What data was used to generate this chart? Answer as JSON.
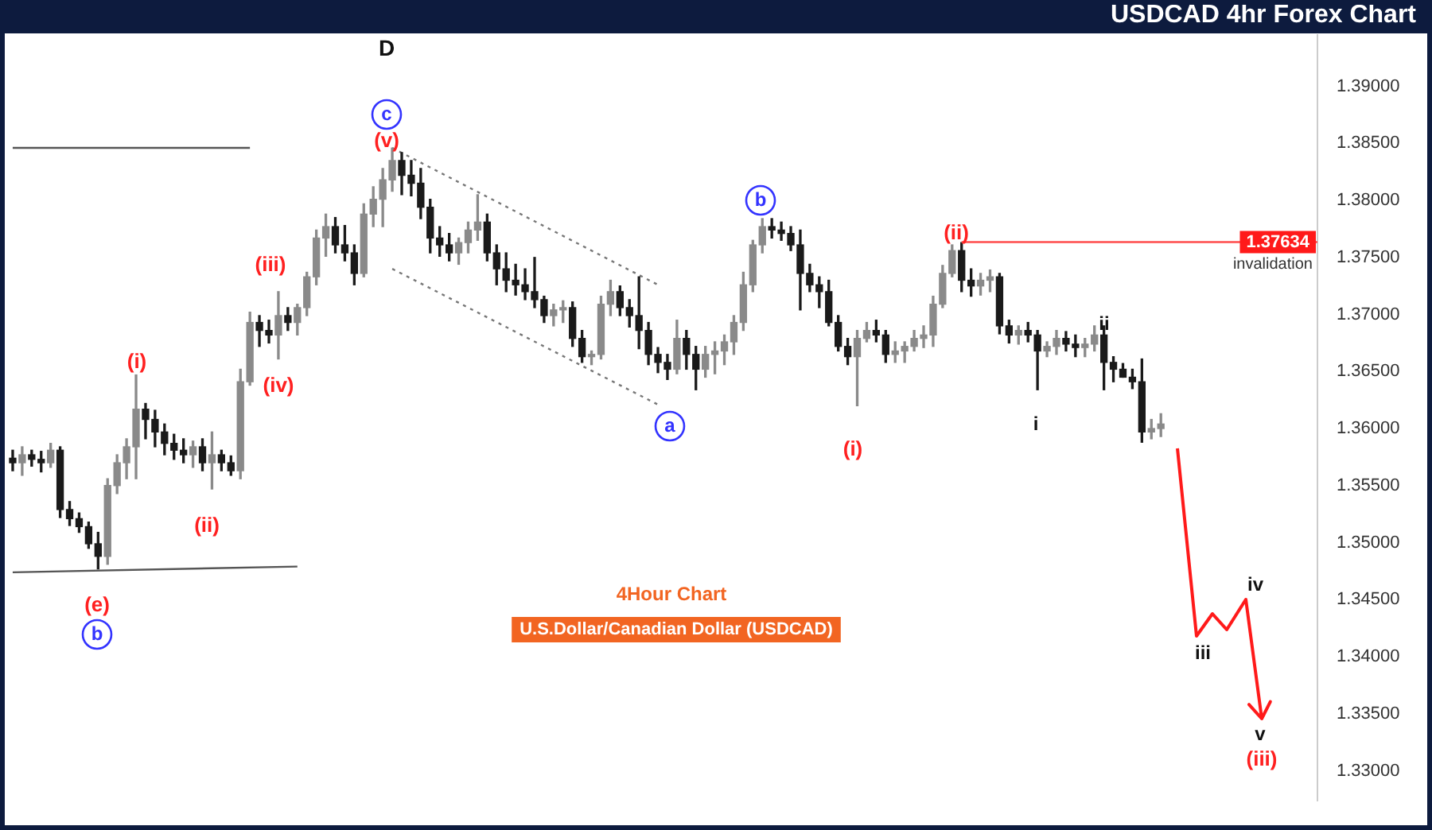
{
  "chart_data": {
    "type": "candlestick",
    "title": "USDCAD 4hr Forex Chart",
    "colors": [
      "#1a1a1a",
      "#8a8a8a",
      "#1a1a1a",
      "#1a1a1a",
      "#8a8a8a",
      "#1a1a1a",
      "#1a1a1a",
      "#1a1a1a",
      "#1a1a1a",
      "#1a1a1a",
      "#8a8a8a",
      "#8a8a8a",
      "#8a8a8a",
      "#8a8a8a",
      "#1a1a1a",
      "#1a1a1a",
      "#1a1a1a",
      "#1a1a1a",
      "#1a1a1a",
      "#8a8a8a",
      "#1a1a1a",
      "#8a8a8a",
      "#1a1a1a",
      "#1a1a1a",
      "#8a8a8a",
      "#8a8a8a",
      "#1a1a1a",
      "#1a1a1a",
      "#8a8a8a",
      "#1a1a1a",
      "#8a8a8a",
      "#8a8a8a",
      "#8a8a8a",
      "#8a8a8a",
      "#1a1a1a",
      "#1a1a1a",
      "#1a1a1a",
      "#8a8a8a",
      "#8a8a8a",
      "#8a8a8a",
      "#8a8a8a",
      "#1a1a1a",
      "#1a1a1a",
      "#1a1a1a",
      "#1a1a1a",
      "#1a1a1a",
      "#1a1a1a",
      "#8a8a8a",
      "#8a8a8a",
      "#8a8a8a",
      "#1a1a1a",
      "#1a1a1a",
      "#1a1a1a",
      "#1a1a1a",
      "#1a1a1a",
      "#1a1a1a",
      "#1a1a1a",
      "#8a8a8a",
      "#8a8a8a",
      "#1a1a1a",
      "#1a1a1a",
      "#8a8a8a",
      "#8a8a8a",
      "#8a8a8a",
      "#1a1a1a",
      "#1a1a1a",
      "#1a1a1a",
      "#1a1a1a",
      "#1a1a1a",
      "#1a1a1a",
      "#8a8a8a",
      "#1a1a1a",
      "#1a1a1a",
      "#8a8a8a",
      "#8a8a8a",
      "#8a8a8a",
      "#8a8a8a",
      "#8a8a8a",
      "#8a8a8a",
      "#8a8a8a",
      "#1a1a1a",
      "#1a1a1a",
      "#1a1a1a",
      "#1a1a1a",
      "#1a1a1a",
      "#1a1a1a",
      "#1a1a1a",
      "#1a1a1a",
      "#1a1a1a",
      "#8a8a8a",
      "#8a8a8a",
      "#1a1a1a",
      "#1a1a1a",
      "#8a8a8a",
      "#8a8a8a",
      "#8a8a8a",
      "#8a8a8a",
      "#8a8a8a",
      "#8a8a8a",
      "#8a8a8a",
      "#1a1a1a",
      "#1a1a1a",
      "#8a8a8a",
      "#8a8a8a",
      "#1a1a1a",
      "#1a1a1a",
      "#8a8a8a",
      "#1a1a1a",
      "#1a1a1a",
      "#8a8a8a",
      "#8a8a8a",
      "#1a1a1a",
      "#1a1a1a",
      "#8a8a8a",
      "#8a8a8a",
      "#1a1a1a",
      "#1a1a1a",
      "#1a1a1a",
      "#1a1a1a",
      "#1a1a1a",
      "#8a8a8a",
      "#8a8a8a",
      null,
      null,
      null,
      null,
      null,
      null,
      null,
      null,
      null,
      null,
      null,
      null,
      null,
      null,
      null,
      null
    ],
    "categories": [
      null,
      null,
      null,
      null,
      null,
      null,
      null,
      null,
      null,
      null,
      null,
      null,
      null,
      null,
      null,
      null,
      null,
      null,
      null,
      null,
      null,
      null,
      null,
      null,
      null,
      null,
      null,
      null,
      null,
      null,
      null,
      null,
      null,
      null,
      null,
      null,
      null,
      null,
      null,
      null,
      null,
      null,
      null,
      null,
      null,
      null,
      null,
      null,
      null,
      null,
      null,
      null,
      null,
      null,
      null,
      null,
      null,
      null,
      null,
      null,
      null,
      null,
      null,
      null,
      null,
      null,
      null,
      null,
      null,
      null,
      null,
      null,
      null,
      null,
      null,
      null,
      null,
      null,
      null,
      null,
      null,
      null,
      null,
      null,
      null,
      null,
      null,
      null,
      null,
      null,
      null,
      null,
      null,
      null,
      null,
      null,
      null,
      null,
      null,
      null,
      null,
      null,
      null,
      null,
      null,
      null,
      null,
      null,
      null,
      null,
      null,
      null,
      null,
      null,
      null,
      null,
      null,
      null,
      null,
      null,
      null,
      null,
      null,
      null,
      null,
      null,
      null,
      null,
      null,
      null,
      null,
      null,
      null,
      null,
      null,
      null,
      null,
      null
    ],
    "ohlc": [
      [
        1.3574,
        1.3581,
        1.3563,
        1.357
      ],
      [
        1.357,
        1.3584,
        1.3559,
        1.3577
      ],
      [
        1.3577,
        1.3581,
        1.3567,
        1.3573
      ],
      [
        1.3573,
        1.358,
        1.3562,
        1.357
      ],
      [
        1.357,
        1.3587,
        1.3566,
        1.3581
      ],
      [
        1.3581,
        1.3584,
        1.3522,
        1.3529
      ],
      [
        1.3529,
        1.3536,
        1.3515,
        1.3521
      ],
      [
        1.3521,
        1.3526,
        1.3509,
        1.3514
      ],
      [
        1.3514,
        1.3518,
        1.3495,
        1.3499
      ],
      [
        1.3499,
        1.3509,
        1.3477,
        1.3488
      ],
      [
        1.3488,
        1.3556,
        1.3481,
        1.355
      ],
      [
        1.355,
        1.3577,
        1.3543,
        1.357
      ],
      [
        1.357,
        1.3591,
        1.3556,
        1.3584
      ],
      [
        1.3584,
        1.3647,
        1.3556,
        1.3617
      ],
      [
        1.3617,
        1.3622,
        1.3591,
        1.3608
      ],
      [
        1.3608,
        1.3616,
        1.3584,
        1.3597
      ],
      [
        1.3597,
        1.3604,
        1.3577,
        1.3587
      ],
      [
        1.3587,
        1.3595,
        1.3573,
        1.3581
      ],
      [
        1.3581,
        1.3591,
        1.357,
        1.3577
      ],
      [
        1.3577,
        1.3589,
        1.3566,
        1.3584
      ],
      [
        1.3584,
        1.3591,
        1.3563,
        1.357
      ],
      [
        1.357,
        1.3597,
        1.3547,
        1.3577
      ],
      [
        1.3577,
        1.3581,
        1.3563,
        1.357
      ],
      [
        1.357,
        1.3576,
        1.3559,
        1.3563
      ],
      [
        1.3563,
        1.3652,
        1.3556,
        1.3641
      ],
      [
        1.3641,
        1.3702,
        1.3638,
        1.3693
      ],
      [
        1.3693,
        1.3699,
        1.3672,
        1.3686
      ],
      [
        1.3686,
        1.3695,
        1.3675,
        1.3682
      ],
      [
        1.3682,
        1.372,
        1.3661,
        1.3699
      ],
      [
        1.3699,
        1.3706,
        1.3686,
        1.3693
      ],
      [
        1.3693,
        1.3709,
        1.3682,
        1.3706
      ],
      [
        1.3706,
        1.3737,
        1.3699,
        1.3733
      ],
      [
        1.3733,
        1.3774,
        1.3726,
        1.3767
      ],
      [
        1.3767,
        1.3788,
        1.3751,
        1.3777
      ],
      [
        1.3777,
        1.3785,
        1.3754,
        1.3761
      ],
      [
        1.3761,
        1.3778,
        1.3747,
        1.3754
      ],
      [
        1.3754,
        1.3761,
        1.3726,
        1.3736
      ],
      [
        1.3736,
        1.3797,
        1.3733,
        1.3788
      ],
      [
        1.3788,
        1.3812,
        1.3777,
        1.3801
      ],
      [
        1.3801,
        1.3828,
        1.3777,
        1.3818
      ],
      [
        1.3818,
        1.3846,
        1.3808,
        1.3835
      ],
      [
        1.3835,
        1.3842,
        1.3805,
        1.3822
      ],
      [
        1.3822,
        1.3835,
        1.3804,
        1.3815
      ],
      [
        1.3815,
        1.3828,
        1.3784,
        1.3794
      ],
      [
        1.3794,
        1.3801,
        1.3754,
        1.3767
      ],
      [
        1.3767,
        1.3777,
        1.3751,
        1.3761
      ],
      [
        1.3761,
        1.3771,
        1.3747,
        1.3754
      ],
      [
        1.3754,
        1.3767,
        1.3744,
        1.3763
      ],
      [
        1.3763,
        1.3781,
        1.3754,
        1.3774
      ],
      [
        1.3774,
        1.3805,
        1.3765,
        1.3781
      ],
      [
        1.3781,
        1.3788,
        1.3747,
        1.3754
      ],
      [
        1.3754,
        1.3761,
        1.3726,
        1.374
      ],
      [
        1.374,
        1.3754,
        1.372,
        1.373
      ],
      [
        1.373,
        1.3744,
        1.3717,
        1.3726
      ],
      [
        1.3726,
        1.374,
        1.3713,
        1.372
      ],
      [
        1.372,
        1.375,
        1.3706,
        1.3713
      ],
      [
        1.3713,
        1.3716,
        1.3693,
        1.3699
      ],
      [
        1.3699,
        1.3709,
        1.369,
        1.3704
      ],
      [
        1.3704,
        1.3712,
        1.3693,
        1.3706
      ],
      [
        1.3706,
        1.3711,
        1.3672,
        1.3679
      ],
      [
        1.3679,
        1.3686,
        1.3658,
        1.3663
      ],
      [
        1.3663,
        1.3668,
        1.3656,
        1.3665
      ],
      [
        1.3665,
        1.3716,
        1.3661,
        1.3709
      ],
      [
        1.3709,
        1.373,
        1.3699,
        1.372
      ],
      [
        1.372,
        1.3725,
        1.3699,
        1.3706
      ],
      [
        1.3706,
        1.3713,
        1.3689,
        1.3699
      ],
      [
        1.3699,
        1.3733,
        1.367,
        1.3686
      ],
      [
        1.3686,
        1.3693,
        1.3656,
        1.3665
      ],
      [
        1.3665,
        1.3671,
        1.3649,
        1.3658
      ],
      [
        1.3658,
        1.3665,
        1.3643,
        1.3652
      ],
      [
        1.3652,
        1.3695,
        1.3648,
        1.3679
      ],
      [
        1.3679,
        1.3686,
        1.3652,
        1.3665
      ],
      [
        1.3665,
        1.3672,
        1.3634,
        1.3652
      ],
      [
        1.3652,
        1.3672,
        1.3645,
        1.3665
      ],
      [
        1.3665,
        1.3676,
        1.3648,
        1.3668
      ],
      [
        1.3668,
        1.3682,
        1.3656,
        1.3676
      ],
      [
        1.3676,
        1.3699,
        1.3665,
        1.3693
      ],
      [
        1.3693,
        1.3737,
        1.3686,
        1.3726
      ],
      [
        1.3726,
        1.3765,
        1.372,
        1.3761
      ],
      [
        1.3761,
        1.3784,
        1.3754,
        1.3777
      ],
      [
        1.3777,
        1.3784,
        1.3767,
        1.3774
      ],
      [
        1.3774,
        1.3781,
        1.3765,
        1.3771
      ],
      [
        1.3771,
        1.3777,
        1.3756,
        1.3761
      ],
      [
        1.3761,
        1.3774,
        1.3704,
        1.3736
      ],
      [
        1.3736,
        1.3744,
        1.372,
        1.3726
      ],
      [
        1.3726,
        1.3733,
        1.3706,
        1.372
      ],
      [
        1.372,
        1.373,
        1.369,
        1.3693
      ],
      [
        1.3693,
        1.3699,
        1.3668,
        1.3672
      ],
      [
        1.3672,
        1.3679,
        1.3656,
        1.3663
      ],
      [
        1.3663,
        1.3686,
        1.362,
        1.3679
      ],
      [
        1.3679,
        1.3693,
        1.3676,
        1.3686
      ],
      [
        1.3686,
        1.3695,
        1.3676,
        1.3682
      ],
      [
        1.3682,
        1.3686,
        1.3658,
        1.3665
      ],
      [
        1.3665,
        1.3676,
        1.3658,
        1.3668
      ],
      [
        1.3668,
        1.3676,
        1.3658,
        1.3672
      ],
      [
        1.3672,
        1.3686,
        1.3668,
        1.3679
      ],
      [
        1.3679,
        1.369,
        1.3671,
        1.3682
      ],
      [
        1.3682,
        1.3716,
        1.3672,
        1.3709
      ],
      [
        1.3709,
        1.3743,
        1.3706,
        1.3736
      ],
      [
        1.3736,
        1.3761,
        1.3733,
        1.3756
      ],
      [
        1.3756,
        1.3763,
        1.372,
        1.373
      ],
      [
        1.373,
        1.374,
        1.3716,
        1.3725
      ],
      [
        1.3725,
        1.3736,
        1.3717,
        1.373
      ],
      [
        1.373,
        1.3739,
        1.372,
        1.3733
      ],
      [
        1.3733,
        1.3736,
        1.3683,
        1.369
      ],
      [
        1.369,
        1.3695,
        1.3675,
        1.3682
      ],
      [
        1.3682,
        1.369,
        1.3674,
        1.3686
      ],
      [
        1.3686,
        1.3693,
        1.3676,
        1.3682
      ],
      [
        1.3682,
        1.3686,
        1.3634,
        1.3668
      ],
      [
        1.3668,
        1.3676,
        1.3663,
        1.3672
      ],
      [
        1.3672,
        1.3686,
        1.3665,
        1.3679
      ],
      [
        1.3679,
        1.3685,
        1.3668,
        1.3674
      ],
      [
        1.3674,
        1.3682,
        1.3663,
        1.3671
      ],
      [
        1.3671,
        1.3679,
        1.3663,
        1.3674
      ],
      [
        1.3674,
        1.369,
        1.3668,
        1.3682
      ],
      [
        1.3682,
        1.369,
        1.3634,
        1.3658
      ],
      [
        1.3658,
        1.3663,
        1.3641,
        1.3652
      ],
      [
        1.3652,
        1.3657,
        1.3645,
        1.3645
      ],
      [
        1.3645,
        1.3652,
        1.3635,
        1.3641
      ],
      [
        1.3641,
        1.3661,
        1.3588,
        1.3597
      ],
      [
        1.3597,
        1.3608,
        1.3591,
        1.36
      ],
      [
        1.36,
        1.3613,
        1.3593,
        1.3604
      ],
      null,
      null,
      null,
      null,
      null,
      null,
      null,
      null,
      null,
      null,
      null,
      null,
      null,
      null,
      null,
      null
    ],
    "series": [
      {
        "type": "line",
        "color": "#777777",
        "line_style": "dotted",
        "values": [
          null,
          null,
          null,
          null,
          null,
          null,
          null,
          null,
          null,
          null,
          null,
          null,
          null,
          null,
          null,
          null,
          null,
          null,
          null,
          null,
          null,
          null,
          null,
          null,
          null,
          null,
          null,
          null,
          null,
          null,
          null,
          null,
          null,
          null,
          null,
          null,
          null,
          null,
          null,
          null,
          1.3846,
          null,
          null,
          null,
          null,
          null,
          null,
          null,
          null,
          null,
          null,
          null,
          null,
          null,
          null,
          null,
          null,
          null,
          null,
          null,
          null,
          null,
          null,
          null,
          null,
          null,
          null,
          null,
          1.3726,
          null,
          null,
          null,
          null,
          null,
          null,
          null,
          null,
          null,
          null,
          null,
          null,
          null,
          null,
          null,
          null,
          null,
          null,
          null,
          null,
          null,
          null,
          null,
          null,
          null,
          null,
          null,
          null,
          null,
          null,
          null,
          null,
          null,
          null,
          null,
          null,
          null,
          null,
          null,
          null,
          null,
          null,
          null,
          null,
          null,
          null,
          null,
          null,
          null,
          null,
          null,
          null,
          null,
          null,
          null,
          null,
          null,
          null,
          null,
          null,
          null,
          null,
          null,
          null,
          null,
          null,
          null,
          null,
          null
        ]
      },
      {
        "type": "line",
        "color": "#777777",
        "line_style": "dotted",
        "values": [
          null,
          null,
          null,
          null,
          null,
          null,
          null,
          null,
          null,
          null,
          null,
          null,
          null,
          null,
          null,
          null,
          null,
          null,
          null,
          null,
          null,
          null,
          null,
          null,
          null,
          null,
          null,
          null,
          null,
          null,
          null,
          null,
          null,
          null,
          null,
          null,
          null,
          null,
          null,
          null,
          1.374,
          null,
          null,
          null,
          null,
          null,
          null,
          null,
          null,
          null,
          null,
          null,
          null,
          null,
          null,
          null,
          null,
          null,
          null,
          null,
          null,
          null,
          null,
          null,
          null,
          null,
          null,
          null,
          1.3621,
          null,
          null,
          null,
          null,
          null,
          null,
          null,
          null,
          null,
          null,
          null,
          null,
          null,
          null,
          null,
          null,
          null,
          null,
          null,
          null,
          null,
          null,
          null,
          null,
          null,
          null,
          null,
          null,
          null,
          null,
          null,
          null,
          null,
          null,
          null,
          null,
          null,
          null,
          null,
          null,
          null,
          null,
          null,
          null,
          null,
          null,
          null,
          null,
          null,
          null,
          null,
          null,
          null,
          null,
          null,
          null,
          null,
          null,
          null,
          null,
          null,
          null,
          null,
          null,
          null,
          null,
          null,
          null,
          null
        ]
      },
      {
        "type": "line",
        "color": "#555555",
        "line_style": "solid",
        "values": [
          1.3846,
          null,
          null,
          null,
          null,
          null,
          null,
          null,
          null,
          null,
          null,
          null,
          null,
          null,
          null,
          null,
          null,
          null,
          null,
          null,
          null,
          null,
          null,
          null,
          null,
          1.3846,
          null,
          null,
          null,
          null,
          null,
          null,
          null,
          null,
          null,
          null,
          null,
          null,
          null,
          null,
          null,
          null,
          null,
          null,
          null,
          null,
          null,
          null,
          null,
          null,
          null,
          null,
          null,
          null,
          null,
          null,
          null,
          null,
          null,
          null,
          null,
          null,
          null,
          null,
          null,
          null,
          null,
          null,
          null,
          null,
          null,
          null,
          null,
          null,
          null,
          null,
          null,
          null,
          null,
          null,
          null,
          null,
          null,
          null,
          null,
          null,
          null,
          null,
          null,
          null,
          null,
          null,
          null,
          null,
          null,
          null,
          null,
          null,
          null,
          null,
          null,
          null,
          null,
          null,
          null,
          null,
          null,
          null,
          null,
          null,
          null,
          null,
          null,
          null,
          null,
          null,
          null,
          null,
          null,
          null,
          null,
          null,
          null,
          null,
          null,
          null,
          null,
          null,
          null,
          null,
          null,
          null,
          null,
          null,
          null,
          null,
          null,
          null
        ]
      },
      {
        "type": "line",
        "color": "#555555",
        "line_style": "solid",
        "values": [
          1.3474,
          null,
          null,
          null,
          null,
          null,
          null,
          null,
          null,
          null,
          null,
          null,
          null,
          null,
          null,
          null,
          null,
          null,
          null,
          null,
          null,
          null,
          null,
          null,
          null,
          null,
          null,
          null,
          null,
          null,
          1.3479,
          null,
          null,
          null,
          null,
          null,
          null,
          null,
          null,
          null,
          null,
          null,
          null,
          null,
          null,
          null,
          null,
          null,
          null,
          null,
          null,
          null,
          null,
          null,
          null,
          null,
          null,
          null,
          null,
          null,
          null,
          null,
          null,
          null,
          null,
          null,
          null,
          null,
          null,
          null,
          null,
          null,
          null,
          null,
          null,
          null,
          null,
          null,
          null,
          null,
          null,
          null,
          null,
          null,
          null,
          null,
          null,
          null,
          null,
          null,
          null,
          null,
          null,
          null,
          null,
          null,
          null,
          null,
          null,
          null,
          null,
          null,
          null,
          null,
          null,
          null,
          null,
          null,
          null,
          null,
          null,
          null,
          null,
          null,
          null,
          null,
          null,
          null,
          null,
          null,
          null,
          null,
          null,
          null,
          null,
          null,
          null,
          null,
          null,
          null,
          null,
          null,
          null,
          null,
          null,
          null,
          null,
          null
        ]
      }
    ],
    "ylim": [
      1.3274,
      1.3945
    ],
    "yticks": [
      {
        "value": 1.33,
        "label": "1.33000"
      },
      {
        "value": 1.335,
        "label": "1.33500"
      },
      {
        "value": 1.34,
        "label": "1.34000"
      },
      {
        "value": 1.345,
        "label": "1.34500"
      },
      {
        "value": 1.35,
        "label": "1.35000"
      },
      {
        "value": 1.355,
        "label": "1.35500"
      },
      {
        "value": 1.36,
        "label": "1.36000"
      },
      {
        "value": 1.365,
        "label": "1.36500"
      },
      {
        "value": 1.37,
        "label": "1.37000"
      },
      {
        "value": 1.375,
        "label": "1.37500"
      },
      {
        "value": 1.38,
        "label": "1.38000"
      },
      {
        "value": 1.385,
        "label": "1.38500"
      },
      {
        "value": 1.39,
        "label": "1.39000"
      }
    ],
    "tick_labels": "y",
    "grid": false,
    "legend": false,
    "ref_lines": [
      {
        "axis": "y",
        "value": 1.37634,
        "label": "1.37634",
        "color": "#ff4d4d"
      }
    ],
    "annotations": [
      "D",
      "c",
      "(v)",
      "(iii)",
      "(iv)",
      "(i)",
      "(ii)",
      "(e)",
      "b",
      "a",
      "b",
      "(i)",
      "(ii)",
      "i",
      "ii",
      "iii",
      "iv",
      "v",
      "(iii)",
      {
        "text": "invalidation",
        "y": 1.37634
      },
      "4Hour Chart",
      "U.S.Dollar/Canadian Dollar (USDCAD)"
    ]
  }
}
